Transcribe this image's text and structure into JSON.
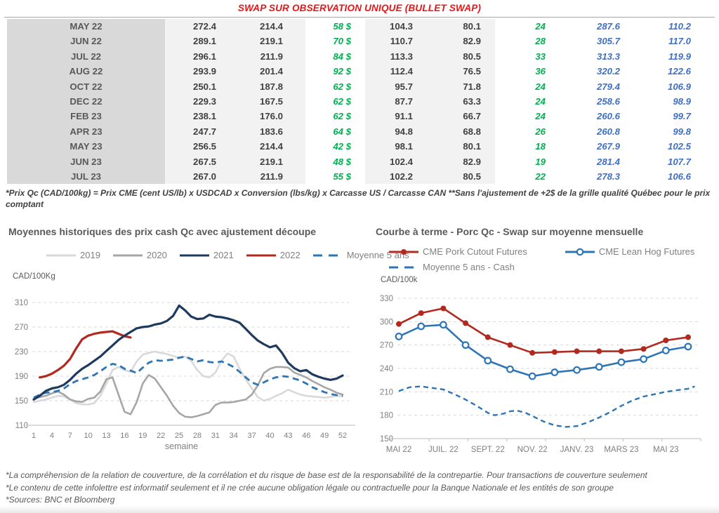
{
  "title": "SWAP SUR OBSERVATION UNIQUE (BULLET SWAP)",
  "colors": {
    "title_red": "#e81416",
    "green": "#00b050",
    "blue": "#3f6fc5",
    "month_bg": "#d9d9d9",
    "value_bg": "#f2f2f2",
    "grid": "#d9d9d9",
    "axis_line": "#c8c8c8",
    "tick_text": "#7f7f7f"
  },
  "table": {
    "rows": [
      [
        "MAY 22",
        "272.4",
        "214.4",
        "58 $",
        "104.3",
        "80.1",
        "24",
        "287.6",
        "110.2"
      ],
      [
        "JUN 22",
        "289.1",
        "219.1",
        "70 $",
        "110.7",
        "82.9",
        "28",
        "305.7",
        "117.0"
      ],
      [
        "JUL 22",
        "296.1",
        "211.9",
        "84 $",
        "113.3",
        "80.5",
        "33",
        "313.3",
        "119.9"
      ],
      [
        "AUG 22",
        "293.9",
        "201.4",
        "92 $",
        "112.4",
        "76.5",
        "36",
        "320.2",
        "122.6"
      ],
      [
        "OCT 22",
        "250.1",
        "187.8",
        "62 $",
        "95.7",
        "71.8",
        "24",
        "279.4",
        "106.9"
      ],
      [
        "DEC 22",
        "229.3",
        "167.5",
        "62 $",
        "87.7",
        "63.3",
        "24",
        "258.6",
        "98.9"
      ],
      [
        "FEB 23",
        "238.1",
        "176.0",
        "62 $",
        "91.1",
        "66.7",
        "24",
        "260.6",
        "99.7"
      ],
      [
        "APR 23",
        "247.7",
        "183.6",
        "64 $",
        "94.8",
        "68.8",
        "26",
        "260.8",
        "99.8"
      ],
      [
        "MAY 23",
        "256.5",
        "214.4",
        "42 $",
        "98.1",
        "80.1",
        "18",
        "267.9",
        "102.5"
      ],
      [
        "JUN 23",
        "267.5",
        "219.1",
        "48 $",
        "102.4",
        "82.9",
        "19",
        "281.4",
        "107.7"
      ],
      [
        "JUL 23",
        "267.0",
        "211.9",
        "55 $",
        "102.2",
        "80.5",
        "22",
        "278.3",
        "106.6"
      ]
    ]
  },
  "table_footnote": "*Prix Qc (CAD/100kg) = Prix CME (cent US/lb) x USDCAD x Conversion (lbs/kg) x Carcasse US / Carcasse CAN **Sans l'ajustement de +2$ de la grille qualité Québec pour le prix comptant",
  "chart_data": [
    {
      "type": "line",
      "title": "Moyennes historiques des prix cash Qc avec ajustement découpe",
      "ylabel": "CAD/100Kg",
      "xlabel": "semaine",
      "ylim": [
        110,
        310
      ],
      "yticks": [
        110,
        150,
        190,
        230,
        270,
        310
      ],
      "xlim": [
        1,
        52
      ],
      "xticks": [
        1,
        4,
        7,
        10,
        13,
        16,
        19,
        22,
        25,
        28,
        31,
        34,
        37,
        40,
        43,
        46,
        49,
        52
      ],
      "grid": "dashed-horizontal",
      "legend_position": "top",
      "series": [
        {
          "name": "2019",
          "color": "#d9d9d9",
          "style": "solid",
          "x_start": 1,
          "values": [
            148,
            150,
            152,
            155,
            158,
            157,
            152,
            146,
            144,
            144,
            146,
            158,
            178,
            200,
            205,
            200,
            197,
            214,
            225,
            228,
            230,
            228,
            226,
            223,
            220,
            222,
            215,
            200,
            190,
            188,
            196,
            215,
            227,
            222,
            202,
            185,
            170,
            156,
            150,
            153,
            158,
            162,
            168,
            164,
            160,
            158,
            157,
            156,
            155,
            156,
            158,
            157
          ]
        },
        {
          "name": "2020",
          "color": "#a6a6a6",
          "style": "solid",
          "x_start": 1,
          "values": [
            153,
            156,
            158,
            162,
            165,
            160,
            152,
            149,
            148,
            153,
            155,
            165,
            185,
            188,
            160,
            132,
            128,
            148,
            178,
            192,
            186,
            172,
            158,
            142,
            130,
            124,
            123,
            125,
            128,
            131,
            143,
            147,
            147,
            148,
            150,
            152,
            160,
            175,
            195,
            202,
            205,
            205,
            204,
            196,
            192,
            188,
            182,
            177,
            172,
            168,
            163,
            160
          ]
        },
        {
          "name": "2021",
          "color": "#1f3a5f",
          "style": "solid",
          "x_start": 1,
          "values": [
            152,
            158,
            166,
            170,
            172,
            176,
            184,
            194,
            202,
            208,
            215,
            222,
            231,
            240,
            249,
            256,
            262,
            268,
            270,
            271,
            274,
            276,
            280,
            288,
            305,
            297,
            287,
            283,
            284,
            290,
            287,
            286,
            284,
            281,
            277,
            267,
            257,
            248,
            242,
            237,
            240,
            228,
            212,
            203,
            198,
            200,
            193,
            189,
            186,
            184,
            186,
            191
          ]
        },
        {
          "name": "2022",
          "color": "#b2291f",
          "style": "solid",
          "x_start": 2,
          "values": [
            188,
            190,
            194,
            200,
            207,
            218,
            235,
            250,
            256,
            259,
            261,
            262,
            263,
            259,
            255,
            253
          ]
        },
        {
          "name": "Moyenne 5 ans",
          "color": "#2e75b6",
          "style": "dashed",
          "x_start": 1,
          "values": [
            155,
            160,
            163,
            164,
            166,
            170,
            177,
            182,
            185,
            188,
            192,
            198,
            205,
            210,
            208,
            202,
            199,
            195,
            204,
            212,
            216,
            215,
            216,
            217,
            220,
            222,
            218,
            214,
            216,
            213,
            212,
            214,
            210,
            205,
            197,
            188,
            180,
            176,
            180,
            185,
            188,
            190,
            189,
            186,
            183,
            178,
            172,
            168,
            164,
            161,
            159,
            158
          ]
        }
      ]
    },
    {
      "type": "line",
      "title": "Courbe à terme - Porc Qc - Swap sur moyenne mensuelle",
      "ylabel": "CAD/100k",
      "ylim": [
        150,
        330
      ],
      "yticks": [
        150,
        180,
        210,
        240,
        270,
        300,
        330
      ],
      "x_range": [
        0,
        13
      ],
      "xtick_indices": [
        0,
        2,
        4,
        6,
        8,
        10,
        12
      ],
      "xtick_labels": [
        "MAI 22",
        "JUIL. 22",
        "SEPT. 22",
        "NOV. 22",
        "JANV. 23",
        "MARS 23",
        "MAI 23"
      ],
      "grid": "dashed-horizontal",
      "legend_position": "top",
      "series": [
        {
          "name": "CME Pork Cutout Futures",
          "color": "#b2291f",
          "style": "solid",
          "marker": "dot",
          "x_start": 0,
          "values": [
            297,
            311,
            317,
            298,
            280,
            270,
            260,
            261,
            262,
            262,
            262,
            265,
            276,
            280
          ]
        },
        {
          "name": "CME Lean Hog Futures",
          "color": "#2e75b6",
          "style": "solid",
          "marker": "circle",
          "x_start": 0,
          "values": [
            281,
            294,
            296,
            270,
            250,
            239,
            230,
            235,
            238,
            242,
            248,
            252,
            263,
            268
          ]
        },
        {
          "name": "Moyenne 5 ans - Cash",
          "color": "#2e75b6",
          "style": "dashed",
          "x": [
            0,
            0.5,
            1,
            1.5,
            2,
            2.5,
            3,
            3.5,
            4,
            4.3,
            4.7,
            5,
            5.3,
            5.7,
            6,
            6.5,
            7,
            7.5,
            8,
            8.5,
            9,
            9.5,
            10,
            10.5,
            11,
            11.5,
            12,
            12.5,
            13,
            13.3
          ],
          "values": [
            211,
            216,
            217,
            215,
            213,
            207,
            200,
            192,
            183,
            180,
            182,
            185,
            186,
            183,
            179,
            172,
            167,
            165,
            166,
            171,
            177,
            184,
            192,
            199,
            204,
            207,
            210,
            212,
            214,
            217
          ]
        }
      ]
    }
  ],
  "footnotes": [
    "*La compréhension de la relation de couverture, de la corrélation et du risque de base est de la responsabilité de la contrepartie. Pour transactions de couverture seulement",
    "*Le contenu de cette infolettre est informatif seulement et il ne crée aucune obligation légale ou contractuelle pour la Banque Nationale et les entités de son groupe",
    "*Sources: BNC et Bloomberg"
  ]
}
